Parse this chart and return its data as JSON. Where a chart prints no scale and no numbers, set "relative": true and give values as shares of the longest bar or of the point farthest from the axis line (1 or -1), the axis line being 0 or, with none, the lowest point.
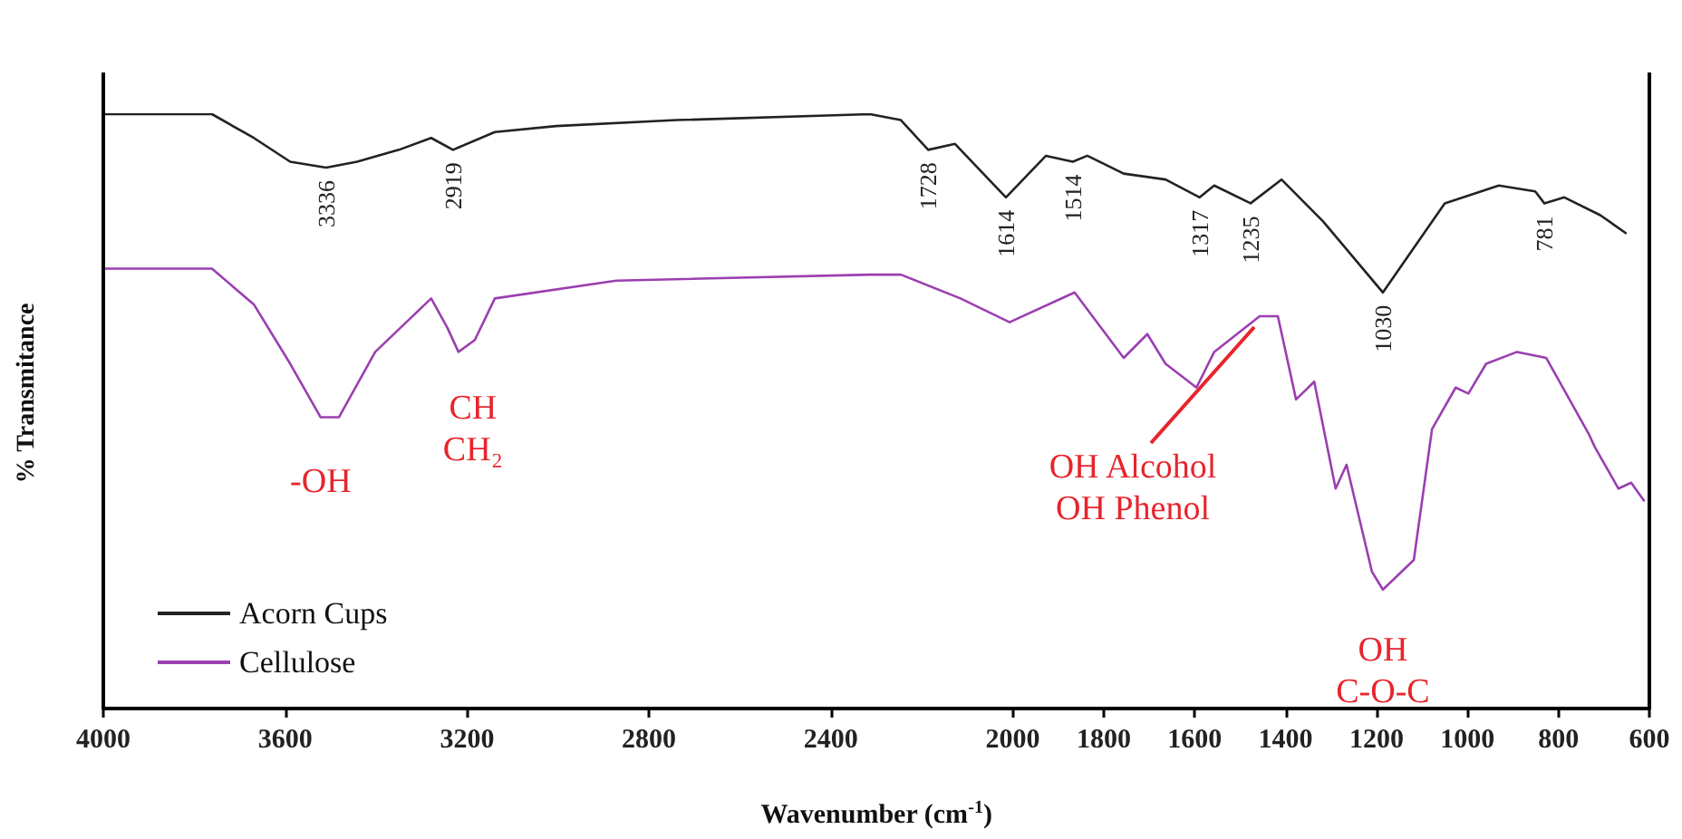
{
  "chart_data": {
    "type": "line",
    "relative": true,
    "xlabel": "Wavenumber (cm$^{-1}$)",
    "ylabel": "% Transmitance",
    "xlim": [
      4000,
      600
    ],
    "xticks": [
      4000,
      3600,
      3200,
      2800,
      2400,
      2000,
      1800,
      1600,
      1400,
      1200,
      1000,
      800,
      600
    ],
    "grid": false,
    "legend": "bottom left",
    "marker": "none",
    "line_style": "solid",
    "series": [
      {
        "name": "Acorn Cups",
        "color": "#222222",
        "x": [
          4000,
          3761,
          3669,
          3589,
          3510,
          3442,
          3350,
          3279,
          3231,
          3139,
          3004,
          2740,
          2314,
          2246,
          2186,
          2127,
          2015,
          1927,
          1868,
          1836,
          1756,
          1664,
          1589,
          1557,
          1477,
          1409,
          1318,
          1186,
          1050,
          931,
          851,
          831,
          787,
          708,
          652
        ],
        "values": [
          1.0,
          1.0,
          0.96,
          0.92,
          0.91,
          0.92,
          0.94,
          0.96,
          0.94,
          0.97,
          0.98,
          0.99,
          1.0,
          0.99,
          0.94,
          0.95,
          0.86,
          0.93,
          0.92,
          0.93,
          0.9,
          0.89,
          0.86,
          0.88,
          0.85,
          0.89,
          0.82,
          0.7,
          0.85,
          0.88,
          0.87,
          0.85,
          0.86,
          0.83,
          0.8
        ]
      },
      {
        "name": "Cellulose",
        "color": "#9b3fb0",
        "x": [
          4000,
          3761,
          3669,
          3589,
          3522,
          3482,
          3402,
          3279,
          3243,
          3219,
          3183,
          3139,
          2872,
          2314,
          2246,
          2115,
          2007,
          1864,
          1756,
          1704,
          1664,
          1596,
          1557,
          1457,
          1417,
          1377,
          1337,
          1290,
          1266,
          1210,
          1186,
          1118,
          1078,
          1026,
          998,
          959,
          891,
          827,
          732,
          720,
          668,
          640,
          612
        ],
        "values": [
          0.74,
          0.74,
          0.68,
          0.58,
          0.49,
          0.49,
          0.6,
          0.69,
          0.64,
          0.6,
          0.62,
          0.69,
          0.72,
          0.73,
          0.73,
          0.69,
          0.65,
          0.7,
          0.59,
          0.63,
          0.58,
          0.54,
          0.6,
          0.66,
          0.66,
          0.52,
          0.55,
          0.37,
          0.41,
          0.23,
          0.2,
          0.25,
          0.47,
          0.54,
          0.53,
          0.58,
          0.6,
          0.59,
          0.46,
          0.44,
          0.37,
          0.38,
          0.35
        ]
      }
    ],
    "annotations": [
      {
        "text": "3336",
        "x": 3510,
        "y": 0.91
      },
      {
        "text": "2919",
        "x": 3231,
        "y": 0.94
      },
      {
        "text": "1728",
        "x": 2186,
        "y": 0.94
      },
      {
        "text": "1614",
        "x": 2015,
        "y": 0.86
      },
      {
        "text": "1514",
        "x": 1868,
        "y": 0.92
      },
      {
        "text": "1317",
        "x": 1589,
        "y": 0.86
      },
      {
        "text": "1235",
        "x": 1477,
        "y": 0.85
      },
      {
        "text": "1030",
        "x": 1186,
        "y": 0.7
      },
      {
        "text": "781",
        "x": 831,
        "y": 0.85
      },
      {
        "text": "-OH",
        "x": 3522,
        "y": 0.49
      },
      {
        "text": "CH\nCH₂",
        "x": 3219,
        "y": 0.6
      },
      {
        "text": "OH Alcohol\nOH Phenol",
        "x": 1457,
        "y": 0.66
      },
      {
        "text": "OH\nC-O-C",
        "x": 1186,
        "y": 0.2
      }
    ]
  }
}
